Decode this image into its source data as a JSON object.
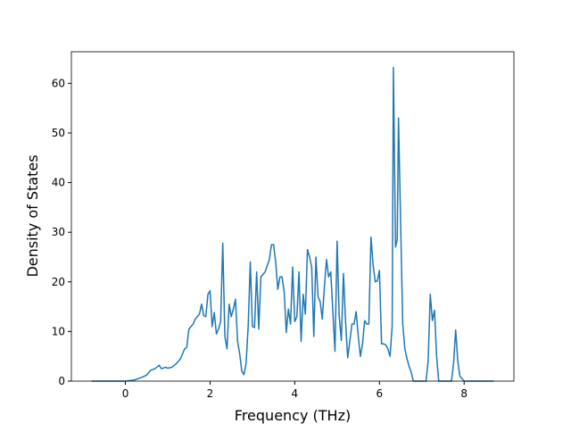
{
  "chart_data": {
    "type": "line",
    "xlabel": "Frequency (THz)",
    "ylabel": "Density of States",
    "xlim": [
      -1.275,
      9.175
    ],
    "ylim": [
      0,
      66.36
    ],
    "xticks": [
      0,
      2,
      4,
      6,
      8
    ],
    "yticks": [
      0,
      10,
      20,
      30,
      40,
      50,
      60
    ],
    "series": [
      {
        "color": "#1f77b4",
        "x": [
          -0.8,
          0.0,
          0.2,
          0.3,
          0.4,
          0.5,
          0.6,
          0.7,
          0.8,
          0.85,
          0.95,
          1.0,
          1.1,
          1.2,
          1.3,
          1.4,
          1.45,
          1.5,
          1.6,
          1.65,
          1.75,
          1.8,
          1.85,
          1.9,
          1.95,
          2.0,
          2.05,
          2.1,
          2.15,
          2.2,
          2.25,
          2.3,
          2.35,
          2.4,
          2.45,
          2.5,
          2.55,
          2.6,
          2.65,
          2.7,
          2.75,
          2.8,
          2.85,
          2.9,
          2.95,
          3.0,
          3.05,
          3.1,
          3.15,
          3.2,
          3.3,
          3.4,
          3.45,
          3.5,
          3.55,
          3.6,
          3.65,
          3.7,
          3.75,
          3.8,
          3.85,
          3.9,
          3.95,
          4.0,
          4.05,
          4.1,
          4.15,
          4.2,
          4.25,
          4.3,
          4.35,
          4.4,
          4.45,
          4.5,
          4.55,
          4.6,
          4.65,
          4.7,
          4.75,
          4.8,
          4.85,
          4.9,
          4.95,
          5.0,
          5.05,
          5.1,
          5.15,
          5.2,
          5.25,
          5.3,
          5.35,
          5.4,
          5.45,
          5.5,
          5.55,
          5.6,
          5.65,
          5.7,
          5.75,
          5.8,
          5.85,
          5.9,
          5.95,
          6.0,
          6.05,
          6.1,
          6.15,
          6.2,
          6.25,
          6.3,
          6.33,
          6.38,
          6.42,
          6.45,
          6.5,
          6.55,
          6.6,
          6.65,
          6.7,
          6.75,
          6.8,
          7.1,
          7.15,
          7.2,
          7.25,
          7.3,
          7.35,
          7.4,
          7.7,
          7.75,
          7.8,
          7.85,
          7.9,
          8.0,
          8.7
        ],
        "values": [
          0,
          0,
          0.2,
          0.5,
          0.8,
          1.2,
          2.2,
          2.5,
          3.2,
          2.5,
          2.8,
          2.6,
          2.8,
          3.5,
          4.5,
          6.5,
          6.8,
          10.5,
          11.5,
          12.5,
          13.5,
          15.5,
          13.2,
          13,
          17.5,
          18.2,
          11,
          13.8,
          9.5,
          10.5,
          12,
          27.8,
          9,
          6.5,
          15.5,
          13,
          14.5,
          16.5,
          8,
          5.5,
          2,
          1.3,
          3.5,
          11,
          24,
          11,
          10.8,
          22,
          10.5,
          21,
          22,
          24.5,
          27.5,
          27.5,
          24,
          18.5,
          21,
          21,
          18,
          9.8,
          14.5,
          11.5,
          23,
          12,
          13,
          22,
          8,
          17.5,
          13.5,
          26.5,
          25,
          23,
          9,
          25,
          17,
          16,
          12.5,
          19,
          24.5,
          21,
          22,
          14,
          6,
          28.2,
          13,
          8.2,
          21.7,
          12,
          4.7,
          8,
          11.5,
          11.5,
          14,
          9,
          5,
          7.5,
          12.2,
          11.5,
          11.5,
          29,
          23.5,
          20,
          20.2,
          22.3,
          7.5,
          7.5,
          7.3,
          6.5,
          5,
          11,
          63.2,
          27,
          28.5,
          53,
          32,
          11.5,
          6.5,
          4.5,
          3,
          1.8,
          0,
          0,
          4,
          17.5,
          12.2,
          14.3,
          5,
          0,
          0,
          3.5,
          10.3,
          4,
          1,
          0,
          0
        ]
      }
    ]
  }
}
